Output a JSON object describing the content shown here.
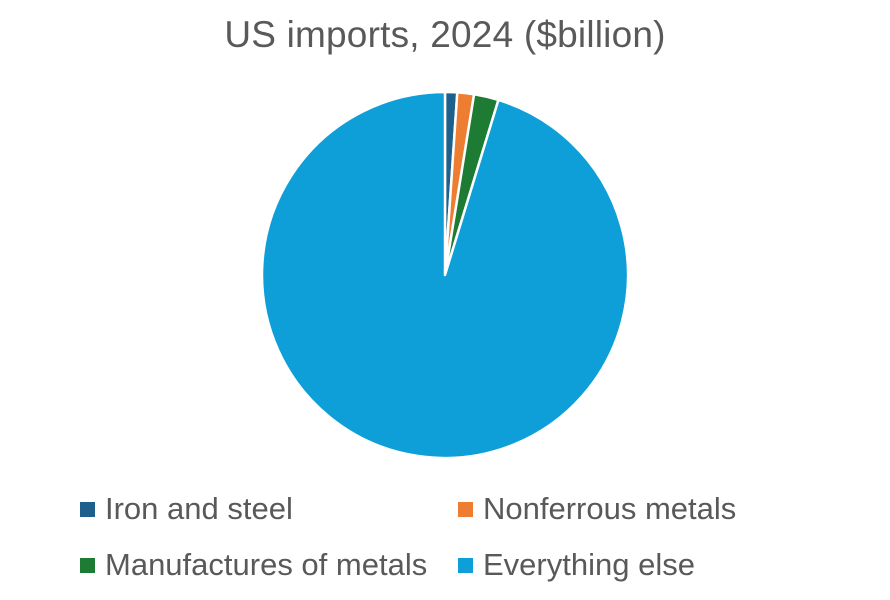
{
  "chart_data": {
    "type": "pie",
    "title": "US imports, 2024 ($billion)",
    "categories": [
      "Iron and steel",
      "Nonferrous metals",
      "Manufactures of metals",
      "Everything else"
    ],
    "values": [
      35,
      48,
      71,
      3113
    ],
    "colors": [
      "#1f5f8b",
      "#ed7d31",
      "#1e7b34",
      "#0e9fd8"
    ],
    "legend_position": "bottom",
    "start_angle": "top (12 o'clock), clockwise"
  }
}
